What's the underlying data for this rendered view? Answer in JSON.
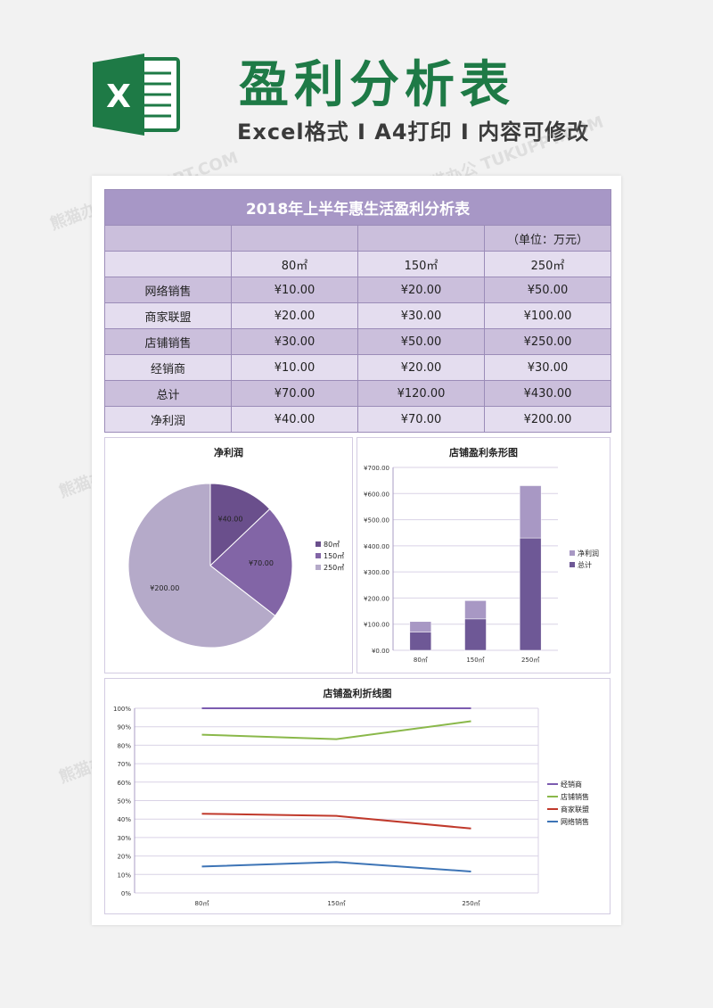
{
  "header": {
    "logo_letter": "X",
    "title": "盈利分析表",
    "subtitle": "Excel格式 I A4打印 I 内容可修改"
  },
  "watermark": "熊猫办公 TUKUPPT.COM",
  "table": {
    "title": "2018年上半年惠生活盈利分析表",
    "unit": "（单位：万元）",
    "columns": [
      "",
      "80㎡",
      "150㎡",
      "250㎡"
    ],
    "rows": [
      {
        "label": "网络销售",
        "values": [
          "¥10.00",
          "¥20.00",
          "¥50.00"
        ]
      },
      {
        "label": "商家联盟",
        "values": [
          "¥20.00",
          "¥30.00",
          "¥100.00"
        ]
      },
      {
        "label": "店铺销售",
        "values": [
          "¥30.00",
          "¥50.00",
          "¥250.00"
        ]
      },
      {
        "label": "经销商",
        "values": [
          "¥10.00",
          "¥20.00",
          "¥30.00"
        ]
      },
      {
        "label": "总计",
        "values": [
          "¥70.00",
          "¥120.00",
          "¥430.00"
        ]
      },
      {
        "label": "净利润",
        "values": [
          "¥40.00",
          "¥70.00",
          "¥200.00"
        ]
      }
    ]
  },
  "chart_data": [
    {
      "type": "pie",
      "title": "净利润",
      "categories": [
        "80㎡",
        "150㎡",
        "250㎡"
      ],
      "values": [
        40,
        70,
        200
      ],
      "data_labels": [
        "¥40.00",
        "¥70.00",
        "¥200.00"
      ],
      "colors": [
        "#6a4f8c",
        "#8265a6",
        "#b5aac9"
      ],
      "legend": "right"
    },
    {
      "type": "bar",
      "stacked": true,
      "title": "店铺盈利条形图",
      "categories": [
        "80㎡",
        "150㎡",
        "250㎡"
      ],
      "series": [
        {
          "name": "总计",
          "values": [
            70,
            120,
            430
          ],
          "color": "#6e5896"
        },
        {
          "name": "净利润",
          "values": [
            40,
            70,
            200
          ],
          "color": "#a898c4"
        }
      ],
      "ylim": [
        0,
        700
      ],
      "yticks": [
        "¥0.00",
        "¥100.00",
        "¥200.00",
        "¥300.00",
        "¥400.00",
        "¥500.00",
        "¥600.00",
        "¥700.00"
      ],
      "legend": "right"
    },
    {
      "type": "line",
      "title": "店铺盈利折线图",
      "categories": [
        "80㎡",
        "150㎡",
        "250㎡"
      ],
      "series": [
        {
          "name": "经销商",
          "values": [
            100,
            100,
            100
          ],
          "color": "#7c5cb0"
        },
        {
          "name": "店铺销售",
          "values": [
            85.7,
            83.3,
            93.0
          ],
          "color": "#8ab84a"
        },
        {
          "name": "商家联盟",
          "values": [
            42.9,
            41.7,
            34.9
          ],
          "color": "#c0392b"
        },
        {
          "name": "网络销售",
          "values": [
            14.3,
            16.7,
            11.6
          ],
          "color": "#3d74b6"
        }
      ],
      "ylim": [
        0,
        100
      ],
      "yticks": [
        "0%",
        "10%",
        "20%",
        "30%",
        "40%",
        "50%",
        "60%",
        "70%",
        "80%",
        "90%",
        "100%"
      ],
      "legend": "right"
    }
  ]
}
